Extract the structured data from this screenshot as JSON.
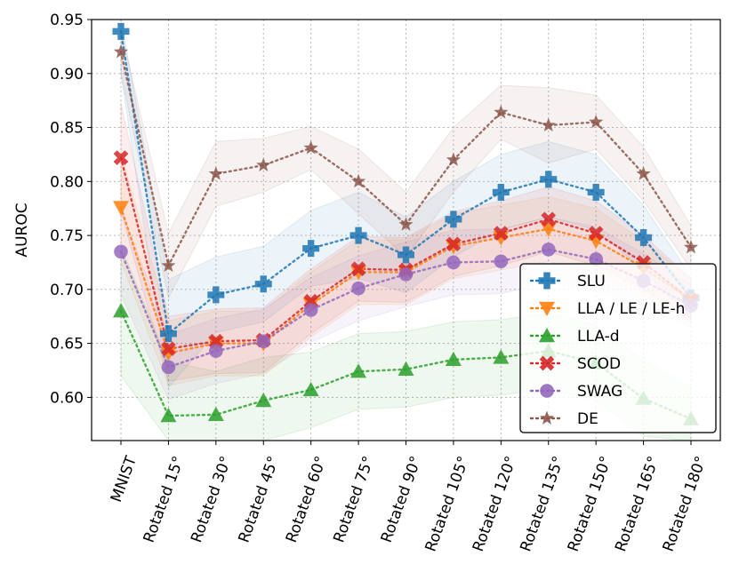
{
  "chart_data": {
    "type": "line",
    "title": "",
    "xlabel": "",
    "ylabel": "AUROC",
    "ylim": [
      0.56,
      0.95
    ],
    "yticks": [
      "0.60",
      "0.65",
      "0.70",
      "0.75",
      "0.80",
      "0.85",
      "0.90",
      "0.95"
    ],
    "ytick_values": [
      0.6,
      0.65,
      0.7,
      0.75,
      0.8,
      0.85,
      0.9,
      0.95
    ],
    "grid": true,
    "legend_position": "lower-right",
    "categories": [
      "MNIST",
      "Rotated 15°",
      "Rotated 30°",
      "Rotated 45°",
      "Rotated 60°",
      "Rotated 75°",
      "Rotated 90°",
      "Rotated 105°",
      "Rotated 120°",
      "Rotated 135°",
      "Rotated 150°",
      "Rotated 165°",
      "Rotated 180°"
    ],
    "series": [
      {
        "name": "SLU",
        "color": "#1f77b4",
        "marker": "plus",
        "values": [
          0.939,
          0.659,
          0.695,
          0.705,
          0.738,
          0.75,
          0.732,
          0.765,
          0.79,
          0.802,
          0.79,
          0.748,
          0.692
        ],
        "band": [
          0.04,
          0.05,
          0.035,
          0.035,
          0.035,
          0.04,
          0.035,
          0.035,
          0.035,
          0.035,
          0.035,
          0.03,
          0.02
        ]
      },
      {
        "name": "LLA / LE / LE-h",
        "color": "#ff7f0e",
        "marker": "triangle-down",
        "values": [
          0.776,
          0.641,
          0.65,
          0.65,
          0.686,
          0.716,
          0.716,
          0.74,
          0.748,
          0.756,
          0.745,
          0.72,
          0.69
        ],
        "band": [
          0.05,
          0.03,
          0.03,
          0.03,
          0.03,
          0.03,
          0.03,
          0.03,
          0.03,
          0.03,
          0.03,
          0.025,
          0.02
        ]
      },
      {
        "name": "LLA-d",
        "color": "#2ca02c",
        "marker": "triangle-up",
        "values": [
          0.68,
          0.583,
          0.584,
          0.597,
          0.607,
          0.624,
          0.626,
          0.635,
          0.637,
          0.643,
          0.632,
          0.599,
          0.58
        ],
        "band": [
          0.06,
          0.05,
          0.04,
          0.04,
          0.035,
          0.035,
          0.035,
          0.035,
          0.035,
          0.035,
          0.035,
          0.035,
          0.03
        ]
      },
      {
        "name": "SCOD",
        "color": "#d62728",
        "marker": "x",
        "values": [
          0.822,
          0.645,
          0.652,
          0.653,
          0.689,
          0.719,
          0.718,
          0.742,
          0.752,
          0.765,
          0.752,
          0.725,
          0.69
        ],
        "band": [
          0.05,
          0.03,
          0.03,
          0.03,
          0.03,
          0.03,
          0.03,
          0.03,
          0.03,
          0.03,
          0.03,
          0.025,
          0.02
        ]
      },
      {
        "name": "SWAG",
        "color": "#9467bd",
        "marker": "circle",
        "values": [
          0.735,
          0.628,
          0.643,
          0.652,
          0.681,
          0.701,
          0.714,
          0.725,
          0.726,
          0.737,
          0.728,
          0.708,
          0.685
        ],
        "band": [
          0.04,
          0.03,
          0.03,
          0.03,
          0.03,
          0.03,
          0.03,
          0.03,
          0.03,
          0.03,
          0.03,
          0.025,
          0.02
        ]
      },
      {
        "name": "DE",
        "color": "#8c564b",
        "marker": "star",
        "values": [
          0.92,
          0.722,
          0.807,
          0.815,
          0.831,
          0.8,
          0.76,
          0.82,
          0.864,
          0.852,
          0.855,
          0.807,
          0.739
        ],
        "band": [
          0.02,
          0.03,
          0.03,
          0.025,
          0.02,
          0.03,
          0.03,
          0.03,
          0.025,
          0.035,
          0.025,
          0.025,
          0.02
        ]
      }
    ]
  }
}
